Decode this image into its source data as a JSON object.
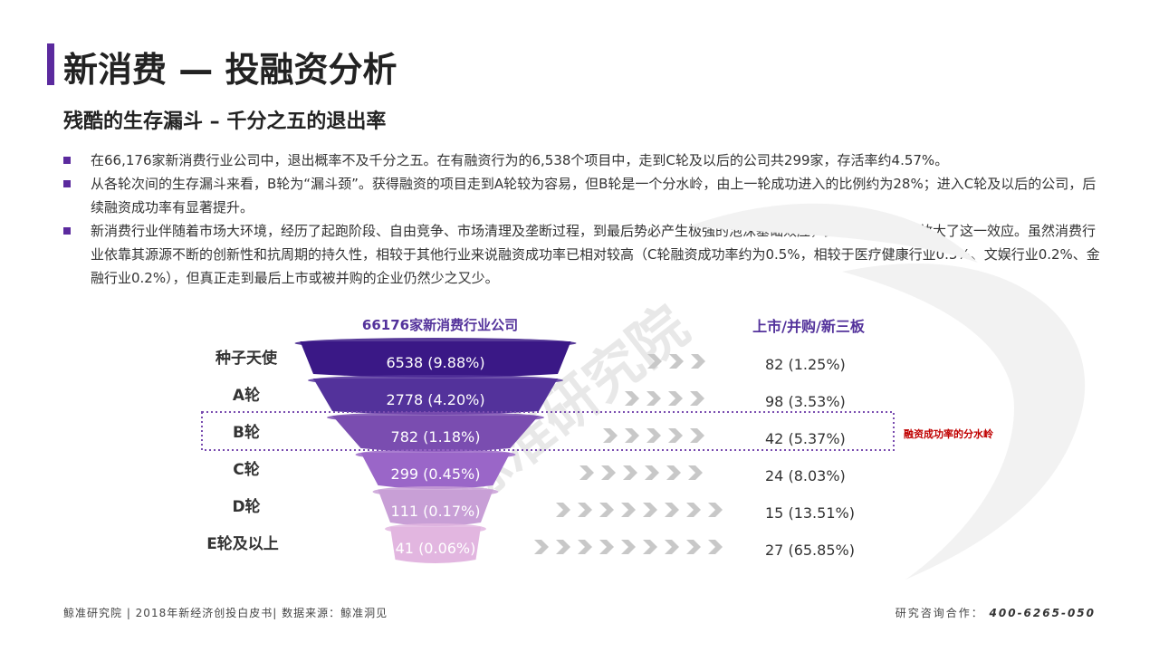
{
  "header": {
    "title": "新消费 — 投融资分析",
    "subtitle": "残酷的生存漏斗 – 千分之五的退出率"
  },
  "bullets": [
    "在66,176家新消费行业公司中，退出概率不及千分之五。在有融资行为的6,538个项目中，走到C轮及以后的公司共299家，存活率约4.57%。",
    "从各轮次间的生存漏斗来看，B轮为“漏斗颈”。获得融资的项目走到A轮较为容易，但B轮是一个分水岭，由上一轮成功进入的比例约为28%；进入C轮及以后的公司，后续融资成功率有显著提升。",
    "新消费行业伴随着市场大环境，经历了起跑阶段、自由竞争、市场清理及垄断过程，到最后势必产生极强的泡沫基础效应，资本的集中更是放大了这一效应。虽然消费行业依靠其源源不断的创新性和抗周期的持久性，相较于其他行业来说融资成功率已相对较高（C轮融资成功率约为0.5%，相较于医疗健康行业0.3%、文娱行业0.2%、金融行业0.2%），但真正走到最后上市或被并购的企业仍然少之又少。"
  ],
  "chart_data": {
    "type": "funnel",
    "top_label": "66176家新消费行业公司",
    "right_header": "上市/并购/新三板",
    "highlight_note": "融资成功率的分水岭",
    "stages": [
      {
        "name": "种子天使",
        "count": 6538,
        "pct_label": "(9.88%)",
        "exit_count": 82,
        "exit_pct_label": "(1.25%)"
      },
      {
        "name": "A轮",
        "count": 2778,
        "pct_label": "(4.20%)",
        "exit_count": 98,
        "exit_pct_label": "(3.53%)"
      },
      {
        "name": "B轮",
        "count": 782,
        "pct_label": "(1.18%)",
        "exit_count": 42,
        "exit_pct_label": "(5.37%)"
      },
      {
        "name": "C轮",
        "count": 299,
        "pct_label": "(0.45%)",
        "exit_count": 24,
        "exit_pct_label": "(8.03%)"
      },
      {
        "name": "D轮",
        "count": 111,
        "pct_label": "(0.17%)",
        "exit_count": 15,
        "exit_pct_label": "(13.51%)"
      },
      {
        "name": "E轮及以上",
        "count": 41,
        "pct_label": "(0.06%)",
        "exit_count": 27,
        "exit_pct_label": "(65.85%)"
      }
    ],
    "highlight_stage": "B轮",
    "colors": [
      "#3a1886",
      "#53329b",
      "#7a4db0",
      "#9a66c8",
      "#c89fd6",
      "#e2b6e0"
    ],
    "arrow_color": "#c8c8c8",
    "highlight_border_color": "#7a4db0",
    "highlight_note_color": "#c00000"
  },
  "watermark": "鲸准研究院",
  "footer": {
    "left": "鲸准研究院 | 2018年新经济创投白皮书| 数据来源：鲸准洞见",
    "right_label": "研究咨询合作：",
    "phone": "400-6265-050"
  }
}
